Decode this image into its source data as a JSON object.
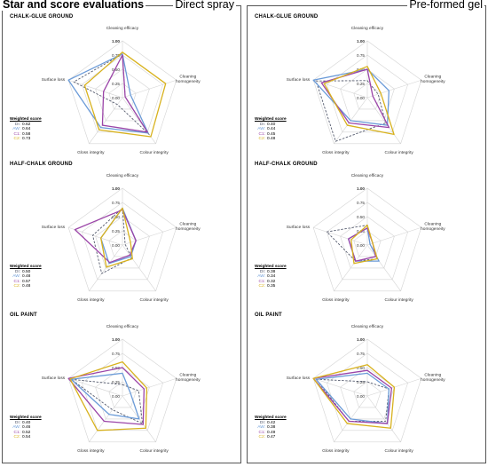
{
  "header": {
    "title": "Star and score evaluations",
    "method_left": "Direct spray",
    "method_right": "Pre-formed gel"
  },
  "axes": [
    "Cleaning efficacy",
    "Cleaning homogeneity",
    "Colour integrity",
    "Gloss integrity",
    "Surface loss"
  ],
  "tick_labels": [
    "0.00",
    "0.25",
    "0.50",
    "0.75",
    "1.00"
  ],
  "weighted_score_label": "Weighted score",
  "colors": {
    "DI": "#555b6e",
    "AW": "#6b9bd8",
    "C1": "#9b45a8",
    "C2": "#d8b21e"
  },
  "chart_data": [
    {
      "type": "radar",
      "method": "Direct spray",
      "title": "CHALK-GLUE GROUND",
      "rlim": [
        0,
        1
      ],
      "series": [
        {
          "name": "DI",
          "values": [
            0.77,
            0.05,
            0.8,
            0.15,
            0.9
          ],
          "dashed": true
        },
        {
          "name": "AW",
          "values": [
            0.77,
            0.15,
            0.77,
            0.65,
            1.0
          ]
        },
        {
          "name": "C1",
          "values": [
            0.75,
            0.05,
            0.75,
            0.6,
            0.35
          ]
        },
        {
          "name": "C2",
          "values": [
            0.8,
            0.8,
            0.85,
            0.7,
            0.7
          ]
        }
      ],
      "scores": [
        {
          "name": "DI",
          "value": "0.62"
        },
        {
          "name": "AW",
          "value": "0.64"
        },
        {
          "name": "C1",
          "value": "0.58"
        },
        {
          "name": "C2",
          "value": "0.73"
        }
      ]
    },
    {
      "type": "radar",
      "method": "Direct spray",
      "title": "HALF-CHALK GROUND",
      "rlim": [
        0,
        1
      ],
      "series": [
        {
          "name": "DI",
          "values": [
            0.65,
            0.05,
            0.28,
            0.62,
            0.55
          ],
          "dashed": true
        },
        {
          "name": "AW",
          "values": [
            0.65,
            0.25,
            0.25,
            0.4,
            0.4
          ]
        },
        {
          "name": "C1",
          "values": [
            0.62,
            0.25,
            0.22,
            0.38,
            0.88
          ]
        },
        {
          "name": "C2",
          "values": [
            0.65,
            0.15,
            0.3,
            0.48,
            0.4
          ]
        }
      ],
      "scores": [
        {
          "name": "DI",
          "value": "0.50"
        },
        {
          "name": "AW",
          "value": "0.48"
        },
        {
          "name": "C1",
          "value": "0.57"
        },
        {
          "name": "C2",
          "value": "0.48"
        }
      ]
    },
    {
      "type": "radar",
      "method": "Direct spray",
      "title": "OIL PAINT",
      "rlim": [
        0,
        1
      ],
      "series": [
        {
          "name": "DI",
          "values": [
            0.2,
            0.3,
            0.6,
            0.3,
            0.95
          ],
          "dashed": true
        },
        {
          "name": "AW",
          "values": [
            0.4,
            0.15,
            0.5,
            0.4,
            0.95
          ]
        },
        {
          "name": "C1",
          "values": [
            0.5,
            0.4,
            0.62,
            0.55,
            1.0
          ]
        },
        {
          "name": "C2",
          "values": [
            0.6,
            0.45,
            0.7,
            0.75,
            0.97
          ]
        }
      ],
      "scores": [
        {
          "name": "DI",
          "value": "0.40"
        },
        {
          "name": "AW",
          "value": "0.46"
        },
        {
          "name": "C1",
          "value": "0.52"
        },
        {
          "name": "C2",
          "value": "0.54"
        }
      ]
    },
    {
      "type": "radar",
      "method": "Pre-formed gel",
      "title": "CHALK-GLUE GROUND",
      "rlim": [
        0,
        1
      ],
      "series": [
        {
          "name": "DI",
          "values": [
            0.3,
            0.2,
            0.55,
            0.95,
            0.95
          ],
          "dashed": true
        },
        {
          "name": "AW",
          "values": [
            0.5,
            0.4,
            0.6,
            0.5,
            1.0
          ]
        },
        {
          "name": "C1",
          "values": [
            0.5,
            0.1,
            0.65,
            0.55,
            0.85
          ]
        },
        {
          "name": "C2",
          "values": [
            0.55,
            0.25,
            0.8,
            0.6,
            0.8
          ]
        }
      ],
      "scores": [
        {
          "name": "DI",
          "value": "0.40"
        },
        {
          "name": "AW",
          "value": "0.44"
        },
        {
          "name": "C1",
          "value": "0.45"
        },
        {
          "name": "C2",
          "value": "0.48"
        }
      ]
    },
    {
      "type": "radar",
      "method": "Pre-formed gel",
      "title": "HALF-CHALK GROUND",
      "rlim": [
        0,
        1
      ],
      "series": [
        {
          "name": "DI",
          "values": [
            0.35,
            0.05,
            0.3,
            0.35,
            0.75
          ],
          "dashed": true
        },
        {
          "name": "AW",
          "values": [
            0.3,
            0.05,
            0.35,
            0.35,
            0.35
          ]
        },
        {
          "name": "C1",
          "values": [
            0.3,
            0.1,
            0.25,
            0.35,
            0.35
          ]
        },
        {
          "name": "C2",
          "values": [
            0.35,
            0.1,
            0.3,
            0.4,
            0.3
          ]
        }
      ],
      "scores": [
        {
          "name": "DI",
          "value": "0.38"
        },
        {
          "name": "AW",
          "value": "0.34"
        },
        {
          "name": "C1",
          "value": "0.32"
        },
        {
          "name": "C2",
          "value": "0.35"
        }
      ]
    },
    {
      "type": "radar",
      "method": "Pre-formed gel",
      "title": "OIL PAINT",
      "rlim": [
        0,
        1
      ],
      "series": [
        {
          "name": "DI",
          "values": [
            0.25,
            0.4,
            0.55,
            0.55,
            0.95
          ],
          "dashed": true
        },
        {
          "name": "AW",
          "values": [
            0.4,
            0.4,
            0.6,
            0.5,
            0.95
          ]
        },
        {
          "name": "C1",
          "values": [
            0.45,
            0.45,
            0.6,
            0.55,
            1.0
          ]
        },
        {
          "name": "C2",
          "values": [
            0.55,
            0.5,
            0.7,
            0.6,
            1.0
          ]
        }
      ],
      "scores": [
        {
          "name": "DI",
          "value": "0.42"
        },
        {
          "name": "AW",
          "value": "0.38"
        },
        {
          "name": "C1",
          "value": "0.49"
        },
        {
          "name": "C2",
          "value": "0.47"
        }
      ]
    }
  ]
}
